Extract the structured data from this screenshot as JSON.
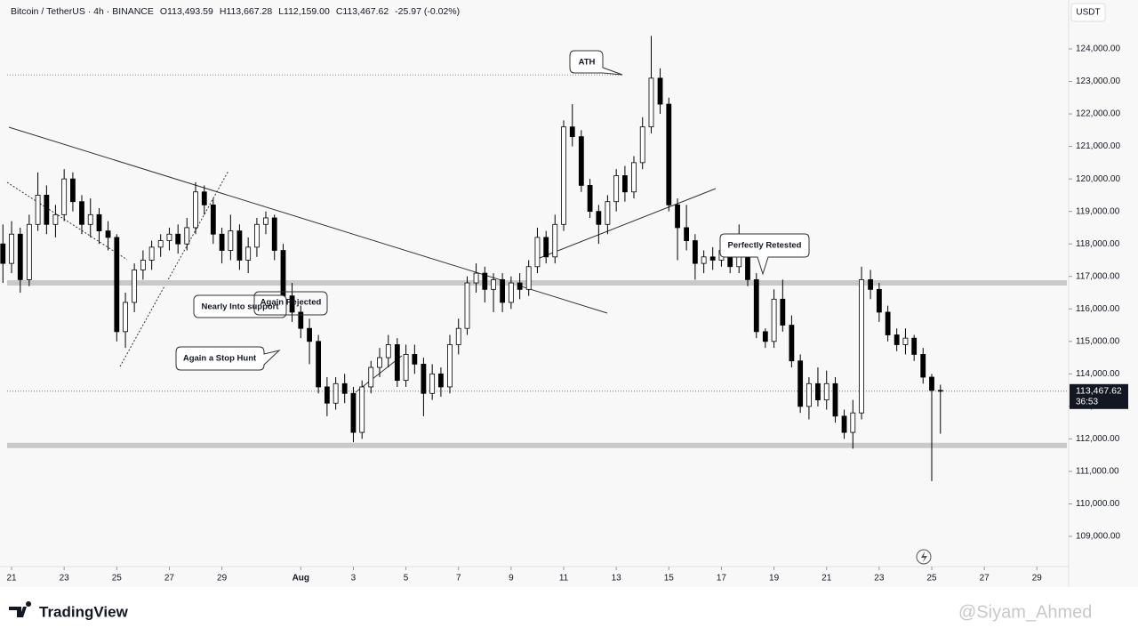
{
  "header": {
    "symbol": "Bitcoin / TetherUS · 4h · BINANCE",
    "readout": [
      "O113,493.59",
      "H113,667.28",
      "L112,159.00",
      "C113,467.62",
      "-25.97 (-0.02%)"
    ]
  },
  "chart_data": {
    "type": "candlestick",
    "currency": "USDT",
    "x": [
      -0.33,
      0,
      0.33,
      0.67,
      1,
      1.33,
      1.67,
      2,
      2.33,
      2.67,
      3,
      3.33,
      3.67,
      4,
      4.33,
      4.67,
      5,
      5.33,
      5.67,
      6,
      6.33,
      6.67,
      7,
      7.33,
      7.67,
      8,
      8.33,
      8.67,
      9,
      9.33,
      9.67,
      10,
      10.33,
      10.67,
      11,
      11.33,
      11.67,
      12,
      12.33,
      12.67,
      13,
      13.33,
      13.67,
      14,
      14.33,
      14.67,
      15,
      15.33,
      15.67,
      16,
      16.33,
      16.67,
      17,
      17.33,
      17.67,
      18,
      18.33,
      18.67,
      19,
      19.33,
      19.67,
      20,
      20.33,
      20.67,
      21,
      21.33,
      21.67,
      22,
      22.33,
      22.67,
      23,
      23.33,
      23.67,
      24,
      24.33,
      24.67,
      25,
      25.33,
      25.67,
      26,
      26.33,
      26.67,
      27,
      27.33,
      27.67,
      28,
      28.33,
      28.67,
      29,
      29.33,
      29.67,
      30,
      30.33,
      30.67,
      31,
      31.33,
      31.67,
      32,
      32.33,
      32.67,
      33,
      33.33,
      33.67,
      34,
      34.33,
      34.67,
      35,
      35.33
    ],
    "ohlc": [
      [
        118000,
        118600,
        116800,
        117400
      ],
      [
        117400,
        118700,
        117100,
        118300
      ],
      [
        118300,
        118500,
        116500,
        116900
      ],
      [
        116900,
        118900,
        116700,
        118600
      ],
      [
        118600,
        120200,
        118400,
        119500
      ],
      [
        119500,
        119800,
        118300,
        118600
      ],
      [
        118600,
        119200,
        118200,
        118900
      ],
      [
        118900,
        120300,
        118700,
        120000
      ],
      [
        120000,
        120200,
        119000,
        119300
      ],
      [
        119300,
        119500,
        118300,
        118600
      ],
      [
        118600,
        119400,
        118200,
        118900
      ],
      [
        118900,
        119100,
        118000,
        118400
      ],
      [
        118400,
        118700,
        117800,
        118200
      ],
      [
        118200,
        118300,
        115000,
        115300
      ],
      [
        115300,
        116500,
        114800,
        116200
      ],
      [
        116200,
        117400,
        115900,
        117200
      ],
      [
        117200,
        117800,
        116900,
        117500
      ],
      [
        117500,
        118100,
        117200,
        117900
      ],
      [
        117900,
        118300,
        117600,
        118100
      ],
      [
        118100,
        118500,
        117800,
        118300
      ],
      [
        118300,
        118600,
        117700,
        118000
      ],
      [
        118000,
        118800,
        117800,
        118500
      ],
      [
        118500,
        119900,
        118300,
        119600
      ],
      [
        119600,
        119800,
        118900,
        119200
      ],
      [
        119200,
        119400,
        118000,
        118300
      ],
      [
        118300,
        118500,
        117400,
        117800
      ],
      [
        117800,
        118900,
        117500,
        118400
      ],
      [
        118400,
        118600,
        117200,
        117500
      ],
      [
        117500,
        118200,
        117100,
        117900
      ],
      [
        117900,
        118800,
        117600,
        118600
      ],
      [
        118600,
        119000,
        118300,
        118800
      ],
      [
        118800,
        118900,
        117500,
        117800
      ],
      [
        117800,
        118000,
        116100,
        116400
      ],
      [
        116400,
        116800,
        115600,
        115900
      ],
      [
        115900,
        116100,
        115100,
        115400
      ],
      [
        115400,
        115700,
        114300,
        115000
      ],
      [
        115000,
        115200,
        113400,
        113600
      ],
      [
        113600,
        113900,
        112700,
        113100
      ],
      [
        113100,
        113900,
        112900,
        113700
      ],
      [
        113700,
        114000,
        113100,
        113400
      ],
      [
        113400,
        113600,
        111900,
        112200
      ],
      [
        112200,
        113800,
        112000,
        113600
      ],
      [
        113600,
        114400,
        113400,
        114200
      ],
      [
        114200,
        114800,
        113900,
        114500
      ],
      [
        114500,
        115200,
        114200,
        114900
      ],
      [
        114900,
        115100,
        113600,
        113800
      ],
      [
        113800,
        114900,
        113600,
        114600
      ],
      [
        114600,
        114900,
        114000,
        114300
      ],
      [
        114300,
        114500,
        112700,
        113400
      ],
      [
        113400,
        114300,
        113200,
        114000
      ],
      [
        114000,
        114200,
        113300,
        113600
      ],
      [
        113600,
        115200,
        113400,
        114900
      ],
      [
        114900,
        115700,
        114600,
        115400
      ],
      [
        115400,
        117000,
        115200,
        116800
      ],
      [
        116800,
        117400,
        116500,
        117100
      ],
      [
        117100,
        117300,
        116200,
        116600
      ],
      [
        116600,
        117100,
        115900,
        116900
      ],
      [
        116900,
        117100,
        115900,
        116200
      ],
      [
        116200,
        117000,
        116000,
        116800
      ],
      [
        116800,
        117100,
        116300,
        116600
      ],
      [
        116600,
        117500,
        116400,
        117300
      ],
      [
        117300,
        118500,
        117100,
        118200
      ],
      [
        118200,
        118400,
        117400,
        117600
      ],
      [
        117600,
        118900,
        117400,
        118600
      ],
      [
        118600,
        121800,
        118400,
        121600
      ],
      [
        121600,
        122300,
        121000,
        121300
      ],
      [
        121300,
        121500,
        119600,
        119800
      ],
      [
        119800,
        120000,
        118800,
        119000
      ],
      [
        119000,
        119200,
        118000,
        118600
      ],
      [
        118600,
        119500,
        118300,
        119300
      ],
      [
        119300,
        120300,
        119000,
        120100
      ],
      [
        120100,
        120400,
        119300,
        119600
      ],
      [
        119600,
        120700,
        119400,
        120500
      ],
      [
        120500,
        121900,
        120300,
        121600
      ],
      [
        121600,
        124400,
        121400,
        123100
      ],
      [
        123100,
        123400,
        122000,
        122300
      ],
      [
        122300,
        122500,
        119000,
        119200
      ],
      [
        119200,
        119400,
        117500,
        118500
      ],
      [
        118500,
        119200,
        117800,
        118100
      ],
      [
        118100,
        118300,
        116900,
        117400
      ],
      [
        117400,
        117800,
        117100,
        117600
      ],
      [
        117600,
        117900,
        117200,
        117500
      ],
      [
        117500,
        118000,
        117300,
        117800
      ],
      [
        117800,
        118000,
        117100,
        117300
      ],
      [
        117300,
        118600,
        117100,
        117600
      ],
      [
        117600,
        117800,
        116700,
        116900
      ],
      [
        116900,
        117100,
        115100,
        115300
      ],
      [
        115300,
        115400,
        114800,
        115000
      ],
      [
        115000,
        116600,
        114800,
        116300
      ],
      [
        116300,
        116900,
        115300,
        115500
      ],
      [
        115500,
        115800,
        114200,
        114400
      ],
      [
        114400,
        114600,
        112800,
        113000
      ],
      [
        113000,
        113900,
        112600,
        113700
      ],
      [
        113700,
        114200,
        113000,
        113200
      ],
      [
        113200,
        114100,
        112900,
        113700
      ],
      [
        113700,
        113900,
        112500,
        112700
      ],
      [
        112700,
        112900,
        112000,
        112200
      ],
      [
        112200,
        113200,
        111700,
        112800
      ],
      [
        112800,
        117300,
        112600,
        116900
      ],
      [
        116900,
        117200,
        116300,
        116600
      ],
      [
        116600,
        116800,
        115600,
        115900
      ],
      [
        115900,
        116100,
        115000,
        115200
      ],
      [
        115200,
        115400,
        114700,
        114900
      ],
      [
        114900,
        115400,
        114600,
        115100
      ],
      [
        115100,
        115200,
        114400,
        114600
      ],
      [
        114600,
        114800,
        113700,
        113900
      ],
      [
        113900,
        114000,
        110700,
        113493.59
      ],
      [
        113493.59,
        113667.28,
        112159,
        113467.62
      ]
    ],
    "xlim": [
      -0.17,
      40.14
    ],
    "xticks": [
      {
        "value": 0,
        "label": "21"
      },
      {
        "value": 2,
        "label": "23"
      },
      {
        "value": 4,
        "label": "25"
      },
      {
        "value": 6,
        "label": "27"
      },
      {
        "value": 8,
        "label": "29"
      },
      {
        "value": 11,
        "label": "Aug"
      },
      {
        "value": 13,
        "label": "3"
      },
      {
        "value": 15,
        "label": "5"
      },
      {
        "value": 17,
        "label": "7"
      },
      {
        "value": 19,
        "label": "9"
      },
      {
        "value": 21,
        "label": "11"
      },
      {
        "value": 23,
        "label": "13"
      },
      {
        "value": 25,
        "label": "15"
      },
      {
        "value": 27,
        "label": "17"
      },
      {
        "value": 29,
        "label": "19"
      },
      {
        "value": 31,
        "label": "21"
      },
      {
        "value": 33,
        "label": "23"
      },
      {
        "value": 35,
        "label": "25"
      },
      {
        "value": 37,
        "label": "27"
      },
      {
        "value": 39,
        "label": "29"
      }
    ],
    "ylim": [
      108070,
      125505
    ],
    "yticks": [
      {
        "value": 109000,
        "label": "109,000.00"
      },
      {
        "value": 110000,
        "label": "110,000.00"
      },
      {
        "value": 111000,
        "label": "111,000.00"
      },
      {
        "value": 112000,
        "label": "112,000.00"
      },
      {
        "value": 113000,
        "label": "113,000.00"
      },
      {
        "value": 114000,
        "label": "114,000.00"
      },
      {
        "value": 115000,
        "label": "115,000.00"
      },
      {
        "value": 116000,
        "label": "116,000.00"
      },
      {
        "value": 117000,
        "label": "117,000.00"
      },
      {
        "value": 118000,
        "label": "118,000.00"
      },
      {
        "value": 119000,
        "label": "119,000.00"
      },
      {
        "value": 120000,
        "label": "120,000.00"
      },
      {
        "value": 121000,
        "label": "121,000.00"
      },
      {
        "value": 122000,
        "label": "122,000.00"
      },
      {
        "value": 123000,
        "label": "123,000.00"
      },
      {
        "value": 124000,
        "label": "124,000.00"
      }
    ],
    "last_price": {
      "value": 113467.62,
      "label": "113,467.62"
    },
    "countdown": "36:53",
    "ath_level": 123200,
    "zones": [
      116800,
      111800
    ],
    "up_color": "#ffffff",
    "down_color": "#000000",
    "annotations": [
      "ATH",
      "Nearly Into support",
      "Again Rejected",
      "Again a Stop Hunt",
      "Perfectly Retested"
    ]
  },
  "footer": {
    "brand": "TradingView",
    "watermark": "@Siyam_Ahmed"
  }
}
